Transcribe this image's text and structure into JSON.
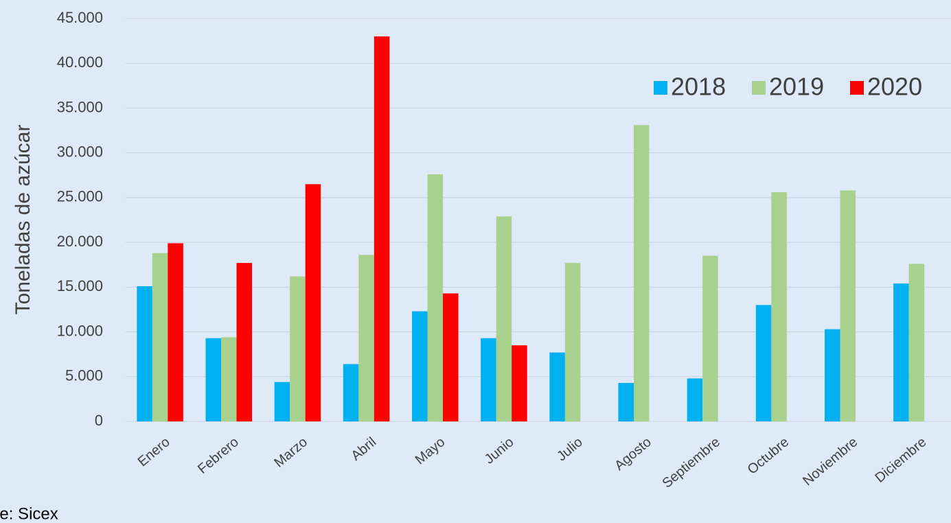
{
  "chart_data": {
    "type": "bar",
    "y_label": "Toneladas de azúcar",
    "source": "Fuente: Sicex",
    "categories": [
      "Enero",
      "Febrero",
      "Marzo",
      "Abril",
      "Mayo",
      "Junio",
      "Julio",
      "Agosto",
      "Septiembre",
      "Octubre",
      "Noviembre",
      "Diciembre"
    ],
    "series": [
      {
        "name": "2018",
        "color": "#00b0f0",
        "values": [
          15100,
          9300,
          4400,
          6400,
          12300,
          9300,
          7700,
          4300,
          4800,
          13000,
          10300,
          15400
        ]
      },
      {
        "name": "2019",
        "color": "#a9d18e",
        "values": [
          18800,
          9400,
          16200,
          18600,
          27600,
          22900,
          17700,
          33100,
          18500,
          25600,
          25800,
          17600
        ]
      },
      {
        "name": "2020",
        "color": "#ff0000",
        "values": [
          19900,
          17700,
          26500,
          43000,
          14300,
          8500,
          null,
          null,
          null,
          null,
          null,
          null
        ]
      }
    ],
    "ylim": [
      0,
      45000
    ],
    "yticks": [
      0,
      {
        "value": 5000,
        "label": "5.000"
      },
      {
        "value": 10000,
        "label": "10.000"
      },
      {
        "value": 15000,
        "label": "15.000"
      },
      {
        "value": 20000,
        "label": "20.000"
      },
      {
        "value": 25000,
        "label": "25.000"
      },
      {
        "value": 30000,
        "label": "30.000"
      },
      {
        "value": 35000,
        "label": "35.000"
      },
      {
        "value": 40000,
        "label": "40.000"
      },
      {
        "value": 45000,
        "label": "45.000"
      }
    ],
    "grid": true,
    "legend": "top-right"
  }
}
